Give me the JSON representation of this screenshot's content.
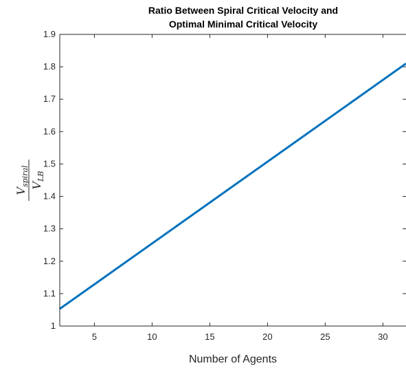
{
  "chart_data": {
    "type": "line",
    "title": [
      "Ratio Between Spiral Critical Velocity and",
      "Optimal Minimal Critical Velocity"
    ],
    "xlabel": "Number of Agents",
    "ylabel": {
      "numerator": {
        "base": "V",
        "sub": "spiral"
      },
      "denominator": {
        "base": "V",
        "sub": "LB"
      }
    },
    "xlim": [
      2,
      32
    ],
    "ylim": [
      1,
      1.9
    ],
    "xticks": [
      5,
      10,
      15,
      20,
      25,
      30
    ],
    "yticks": [
      1,
      1.1,
      1.2,
      1.3,
      1.4,
      1.5,
      1.6,
      1.7,
      1.8,
      1.9
    ],
    "grid": false,
    "line_color": "#0072bd",
    "series": [
      {
        "x": [
          2,
          32
        ],
        "y": [
          1.053,
          1.81
        ]
      }
    ]
  }
}
